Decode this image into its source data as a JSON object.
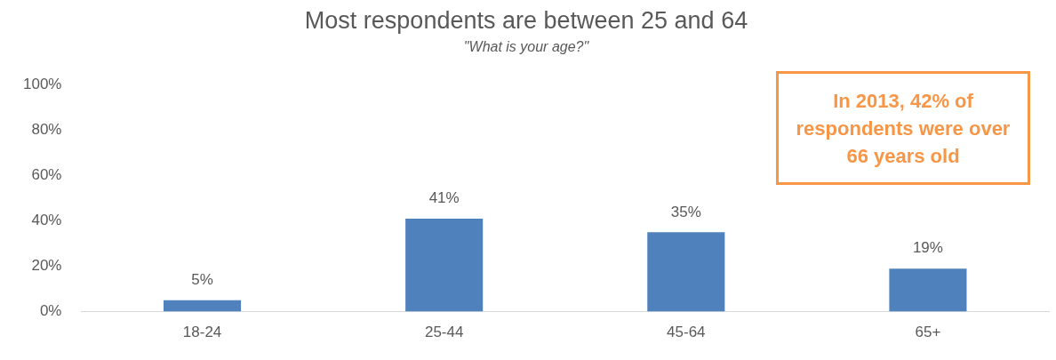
{
  "chart_data": {
    "type": "bar",
    "title": "Most respondents are between 25 and 64",
    "subtitle": "\"What is your age?\"",
    "categories": [
      "18-24",
      "25-44",
      "45-64",
      "65+"
    ],
    "values": [
      5,
      41,
      35,
      19
    ],
    "value_labels": [
      "5%",
      "41%",
      "35%",
      "19%"
    ],
    "color": "#4f81bd",
    "ylim": [
      0,
      100
    ],
    "yticks": [
      {
        "value": 0,
        "label": "0%"
      },
      {
        "value": 20,
        "label": "20%"
      },
      {
        "value": 40,
        "label": "40%"
      },
      {
        "value": 60,
        "label": "60%"
      },
      {
        "value": 80,
        "label": "80%"
      },
      {
        "value": 100,
        "label": "100%"
      }
    ],
    "grid": false,
    "legend": false,
    "annotations": [
      "In 2013, 42% of respondents were over 66 years old"
    ]
  }
}
